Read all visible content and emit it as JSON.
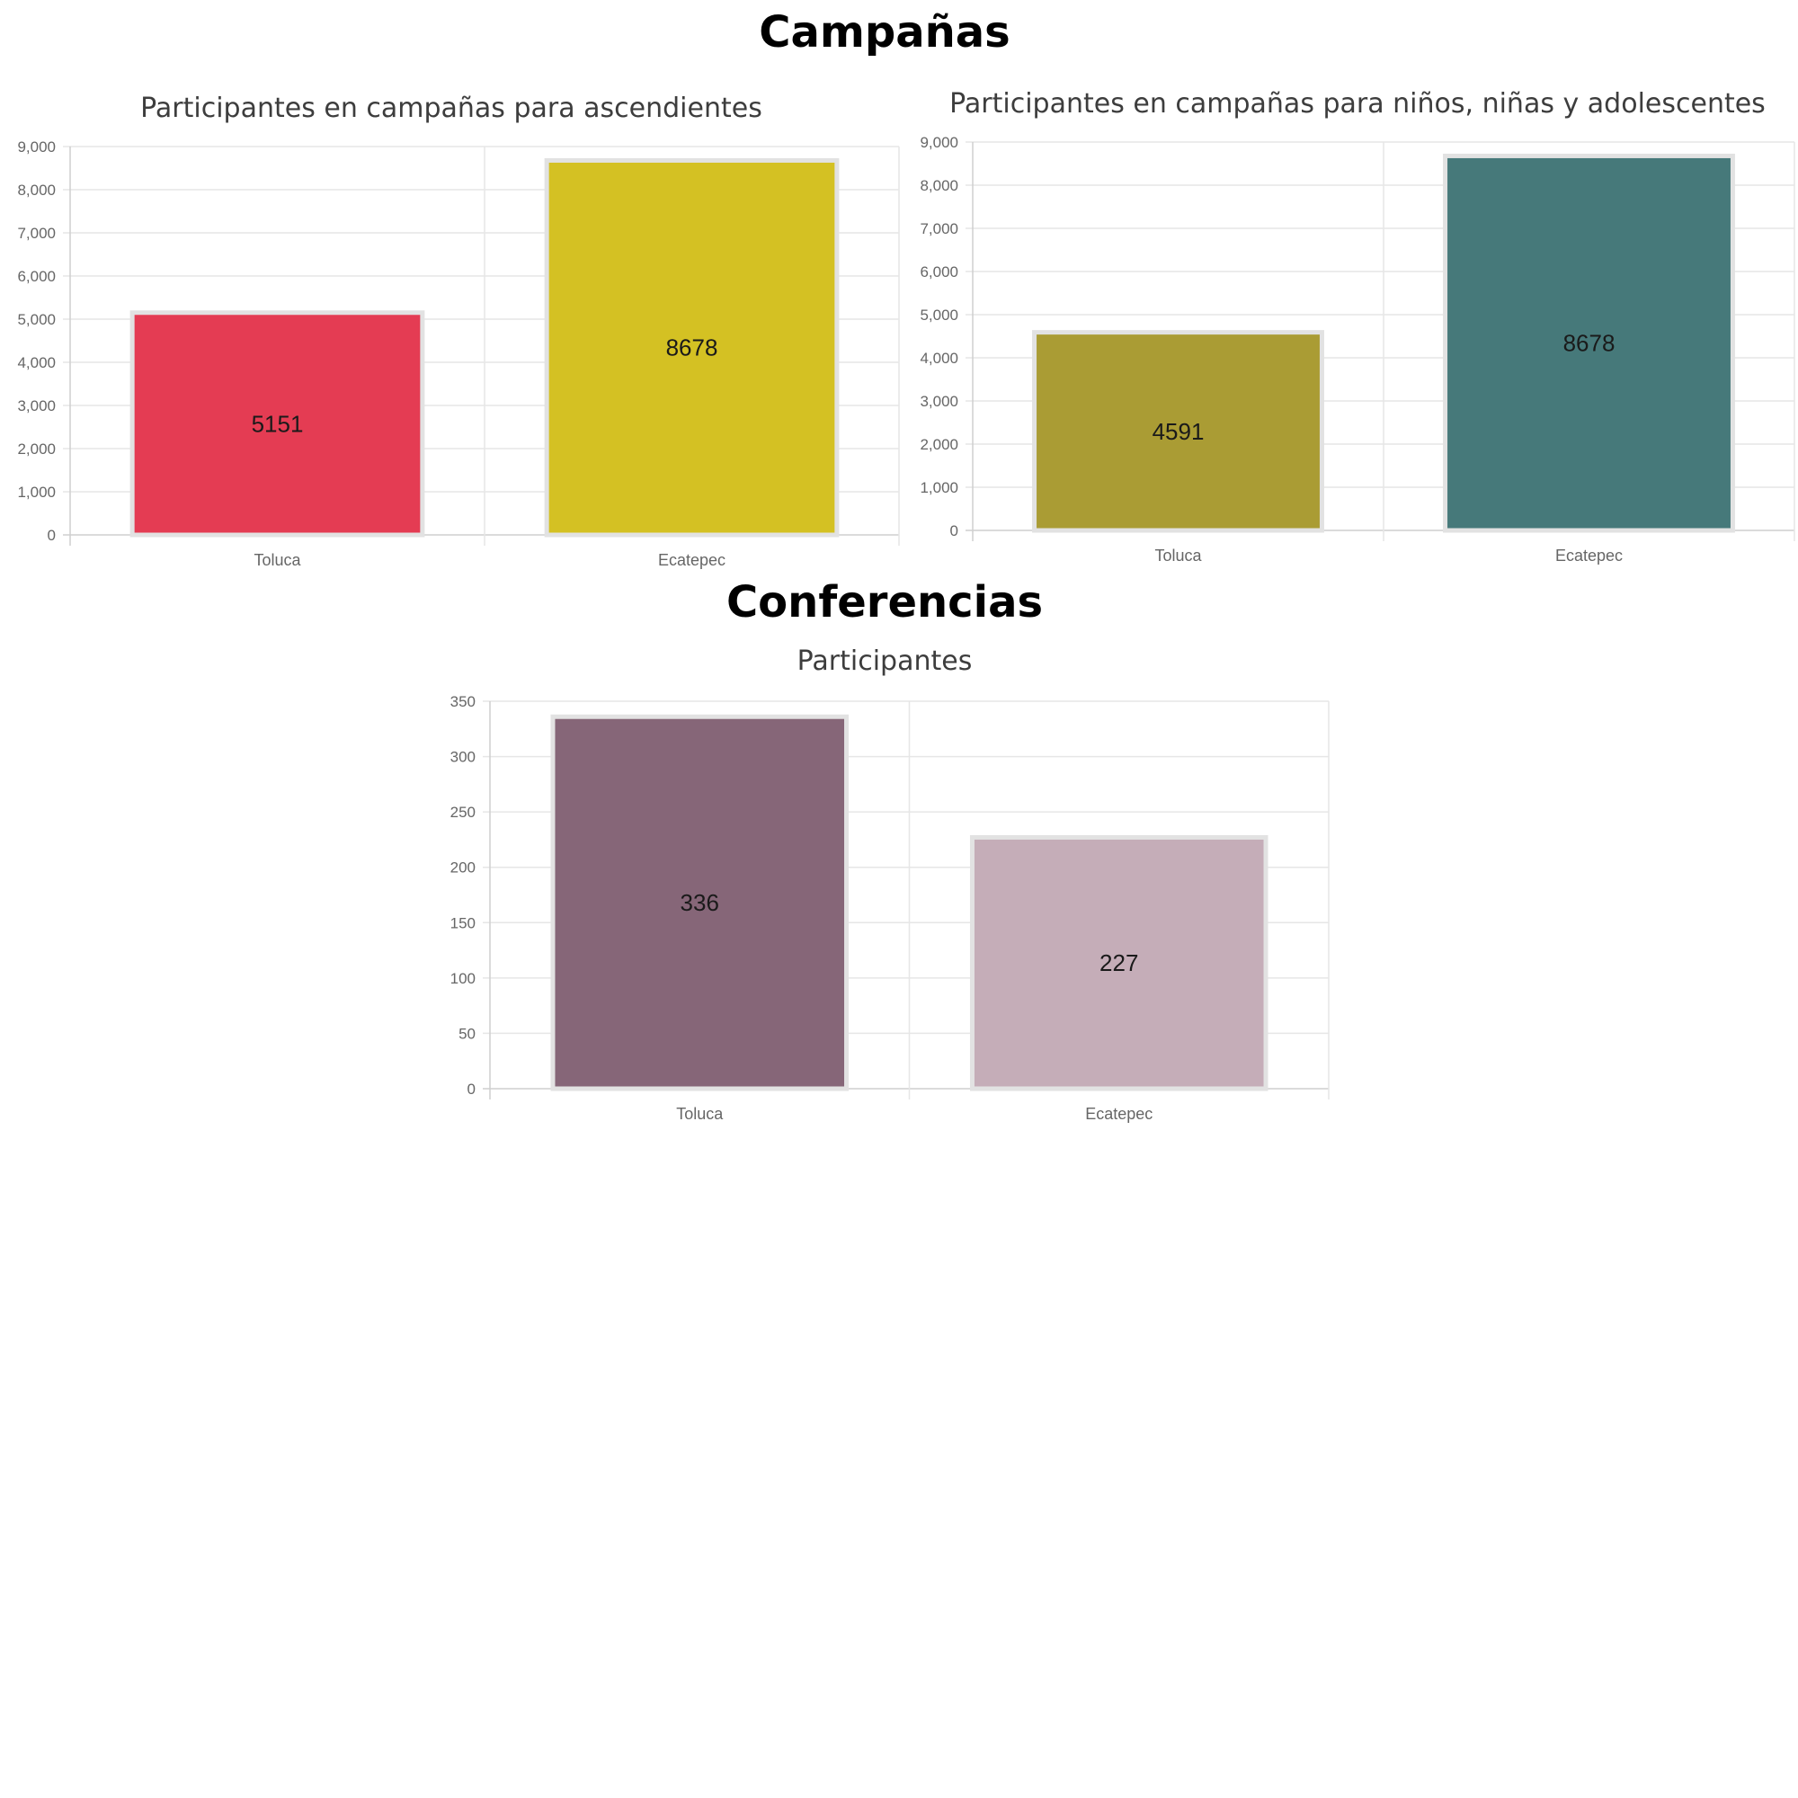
{
  "sections": {
    "campaigns": "Campañas",
    "conferences": "Conferencias"
  },
  "chart_data": [
    {
      "type": "bar",
      "title": "Participantes en campañas para ascendientes",
      "categories": [
        "Toluca",
        "Ecatepec"
      ],
      "values": [
        5151,
        8678
      ],
      "colors": [
        "#e43c53",
        "#d4c123"
      ],
      "ylim": [
        0,
        9000
      ],
      "yticks": [
        0,
        1000,
        2000,
        3000,
        4000,
        5000,
        6000,
        7000,
        8000,
        9000
      ],
      "grid": true,
      "xlabel": "",
      "ylabel": ""
    },
    {
      "type": "bar",
      "title": "Participantes en campañas para niños, niñas y adolescentes",
      "categories": [
        "Toluca",
        "Ecatepec"
      ],
      "values": [
        4591,
        8678
      ],
      "colors": [
        "#aa9c34",
        "#46797a"
      ],
      "ylim": [
        0,
        9000
      ],
      "yticks": [
        0,
        1000,
        2000,
        3000,
        4000,
        5000,
        6000,
        7000,
        8000,
        9000
      ],
      "grid": true,
      "xlabel": "",
      "ylabel": ""
    },
    {
      "type": "bar",
      "title": "Participantes",
      "categories": [
        "Toluca",
        "Ecatepec"
      ],
      "values": [
        336,
        227
      ],
      "colors": [
        "#866678",
        "#c5adb8"
      ],
      "ylim": [
        0,
        350
      ],
      "yticks": [
        0,
        50,
        100,
        150,
        200,
        250,
        300,
        350
      ],
      "grid": true,
      "xlabel": "",
      "ylabel": ""
    }
  ]
}
